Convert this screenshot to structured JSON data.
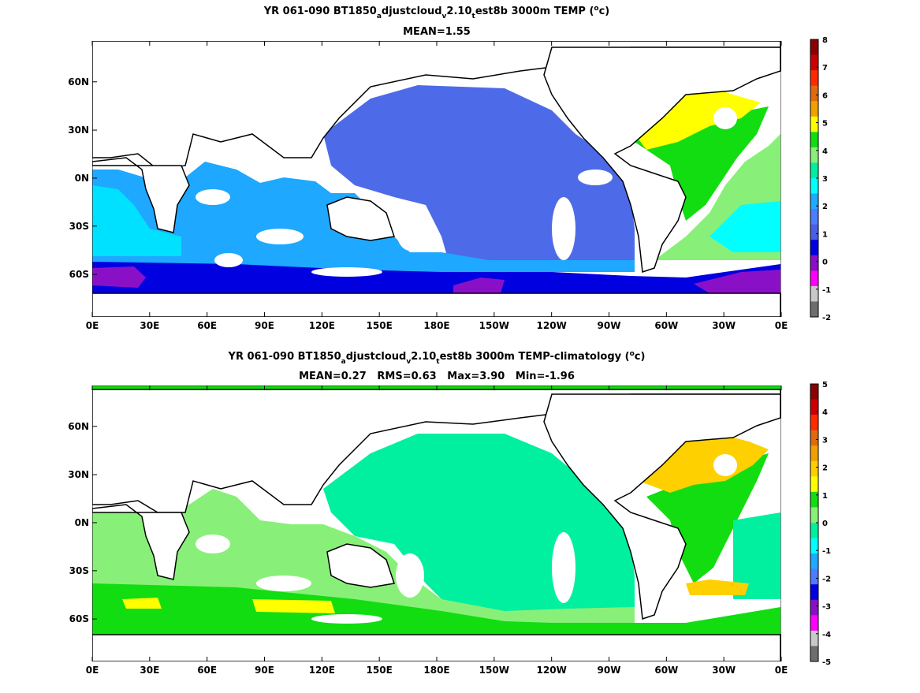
{
  "panels": [
    {
      "title_parts": [
        "YR 061-090 BT1850",
        "a",
        "djustcloud",
        "v",
        "2.10",
        "t",
        "est8b 3000m TEMP (",
        "o",
        "c)"
      ],
      "stats": "MEAN=1.55",
      "colorbar": {
        "ticks": [
          "8",
          "7",
          "6",
          "5",
          "4",
          "3",
          "2",
          "1",
          "0",
          "-1",
          "-2"
        ],
        "colors": [
          "#8b0000",
          "#cc0000",
          "#ff2a00",
          "#e06a10",
          "#f0a000",
          "#ffff00",
          "#11dd11",
          "#88f078",
          "#00f0a0",
          "#00ffff",
          "#1eaaff",
          "#4d7cff",
          "#4b5ee8",
          "#0000e0",
          "#8a10c8",
          "#ff00ff",
          "#c8c8c8",
          "#6e6e6e"
        ]
      }
    },
    {
      "title_parts": [
        "YR 061-090 BT1850",
        "a",
        "djustcloud",
        "v",
        "2.10",
        "t",
        "est8b 3000m TEMP-climatology (",
        "o",
        "c)"
      ],
      "stats": "MEAN=0.27   RMS=0.63   Max=3.90   Min=-1.96",
      "colorbar": {
        "ticks": [
          "5",
          "4",
          "3",
          "2",
          "1",
          "0",
          "-1",
          "-2",
          "-3",
          "-4",
          "-5"
        ],
        "colors": [
          "#8b0000",
          "#cc0000",
          "#ff2a00",
          "#e06a10",
          "#f0a000",
          "#ffd000",
          "#ffff00",
          "#11dd11",
          "#88f078",
          "#00f0a0",
          "#00ffff",
          "#1eaaff",
          "#4d7cff",
          "#0000e0",
          "#8a10c8",
          "#ff00ff",
          "#c8c8c8",
          "#6e6e6e"
        ]
      }
    }
  ],
  "x_ticks": [
    "0E",
    "30E",
    "60E",
    "90E",
    "120E",
    "150E",
    "180E",
    "150W",
    "120W",
    "90W",
    "60W",
    "30W",
    "0E"
  ],
  "y_ticks": [
    "60N",
    "30N",
    "0N",
    "30S",
    "60S"
  ],
  "map_colors": {
    "panel1": {
      "pacific": "#4d6be8",
      "indian": "#1ea8ff",
      "south_band": "#00e0ff",
      "southern_ocean": "#0000e0",
      "antarctic_purple": "#8a10c8",
      "atlantic_north": "#ffff00",
      "atlantic_mid": "#11dd11",
      "atlantic_south": "#88f078",
      "atlantic_cyan": "#00ffff",
      "arctic": "#8a10c8"
    },
    "panel2": {
      "pacific": "#00f0a0",
      "indian": "#88f078",
      "southern_ocean": "#11dd11",
      "yellow_patch": "#ffff00",
      "atlantic_north": "#ffd000",
      "atlantic_mid": "#11dd11",
      "arctic": "#11dd11"
    },
    "land": "#ffffff",
    "coast": "#000000"
  }
}
